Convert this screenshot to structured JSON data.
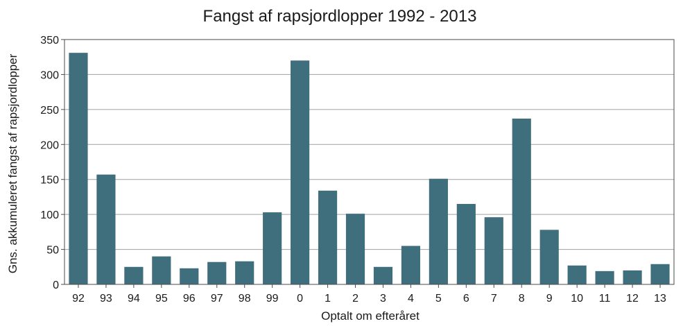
{
  "chart_data": {
    "type": "bar",
    "title": "Fangst af rapsjordlopper 1992 - 2013",
    "xlabel": "Optalt om efteråret",
    "ylabel": "Gns. akkumuleret fangst af rapsjordlopper",
    "categories": [
      "92",
      "93",
      "94",
      "95",
      "96",
      "97",
      "98",
      "99",
      "0",
      "1",
      "2",
      "3",
      "4",
      "5",
      "6",
      "7",
      "8",
      "9",
      "10",
      "11",
      "12",
      "13"
    ],
    "values": [
      331,
      157,
      25,
      40,
      23,
      32,
      33,
      103,
      320,
      134,
      101,
      25,
      55,
      151,
      115,
      96,
      237,
      78,
      27,
      19,
      20,
      29
    ],
    "ylim": [
      0,
      350
    ],
    "yticks": [
      0,
      50,
      100,
      150,
      200,
      250,
      300,
      350
    ],
    "grid": true,
    "bar_color": "#3f6e7d",
    "grid_color": "#a0a0a0"
  }
}
